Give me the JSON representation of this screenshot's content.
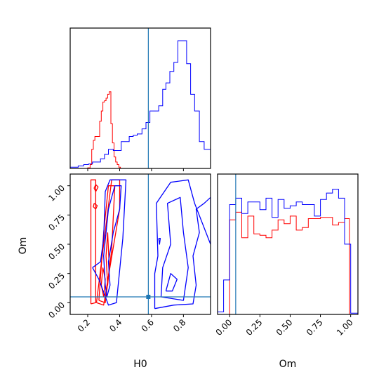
{
  "chart_data": {
    "type": "corner",
    "parameters": [
      "H0",
      "Om"
    ],
    "truths": {
      "H0": 0.58,
      "Om": 0.05
    },
    "colors": {
      "series_a": "#ff0000",
      "series_b": "#0000ff",
      "truth": "#1f77b4"
    },
    "grid": false,
    "legend": "none",
    "ticks": {
      "H0": [
        "0.2",
        "0.4",
        "0.6",
        "0.8"
      ],
      "Om": [
        "0.00",
        "0.25",
        "0.50",
        "0.75",
        "1.00"
      ]
    },
    "axis_labels": {
      "corner_x": "H0",
      "corner_y": "Om",
      "om_hist_x": "Om"
    },
    "ranges": {
      "H0": [
        0.09,
        0.97
      ],
      "Om": [
        -0.1,
        1.1
      ],
      "Om_hist": [
        -0.1,
        1.06
      ]
    },
    "h0_histogram": {
      "x_range": [
        0.09,
        0.97
      ],
      "series_a": {
        "edges": [
          0.09,
          0.2,
          0.215,
          0.225,
          0.235,
          0.245,
          0.255,
          0.265,
          0.275,
          0.285,
          0.295,
          0.305,
          0.315,
          0.325,
          0.335,
          0.345,
          0.355,
          0.365,
          0.375,
          0.385,
          0.395,
          0.405,
          0.97
        ],
        "counts": [
          0,
          0.005,
          0.03,
          0.15,
          0.22,
          0.25,
          0.25,
          0.25,
          0.37,
          0.45,
          0.52,
          0.53,
          0.55,
          0.58,
          0.6,
          0.35,
          0.2,
          0.09,
          0.05,
          0.03,
          0.01,
          0
        ]
      },
      "series_b": {
        "edges": [
          0.09,
          0.14,
          0.175,
          0.205,
          0.23,
          0.255,
          0.28,
          0.305,
          0.33,
          0.36,
          0.39,
          0.41,
          0.435,
          0.46,
          0.485,
          0.51,
          0.54,
          0.565,
          0.59,
          0.62,
          0.645,
          0.67,
          0.69,
          0.715,
          0.74,
          0.765,
          0.79,
          0.82,
          0.845,
          0.87,
          0.9,
          0.93,
          0.97
        ],
        "counts": [
          0.01,
          0.02,
          0.03,
          0.035,
          0.05,
          0.05,
          0.075,
          0.11,
          0.15,
          0.14,
          0.14,
          0.21,
          0.21,
          0.25,
          0.26,
          0.27,
          0.31,
          0.36,
          0.45,
          0.45,
          0.49,
          0.62,
          0.67,
          0.76,
          0.83,
          1.0,
          1.0,
          0.82,
          0.58,
          0.45,
          0.21,
          0.15
        ]
      }
    },
    "om_histogram": {
      "x_range": [
        -0.1,
        1.06
      ],
      "series_a": {
        "edges": [
          -0.1,
          0.0,
          0.05,
          0.1,
          0.15,
          0.2,
          0.25,
          0.3,
          0.35,
          0.4,
          0.45,
          0.5,
          0.55,
          0.6,
          0.65,
          0.7,
          0.75,
          0.8,
          0.85,
          0.9,
          0.95,
          0.99,
          1.06
        ],
        "counts": [
          0,
          0.74,
          0.8,
          0.6,
          0.77,
          0.63,
          0.62,
          0.6,
          0.66,
          0.74,
          0.71,
          0.77,
          0.66,
          0.68,
          0.75,
          0.75,
          0.76,
          0.76,
          0.7,
          0.72,
          0.75,
          0
        ]
      },
      "series_b": {
        "edges": [
          -0.1,
          -0.05,
          0.0,
          0.05,
          0.1,
          0.15,
          0.2,
          0.25,
          0.3,
          0.35,
          0.4,
          0.45,
          0.5,
          0.55,
          0.6,
          0.65,
          0.7,
          0.75,
          0.8,
          0.85,
          0.9,
          0.95,
          1.0,
          1.06
        ],
        "counts": [
          0.02,
          0.27,
          0.86,
          0.91,
          0.79,
          0.88,
          0.88,
          0.82,
          0.91,
          0.76,
          0.9,
          0.83,
          0.85,
          0.88,
          0.86,
          0.86,
          0.77,
          0.9,
          0.95,
          0.98,
          0.91,
          0.55,
          0.01
        ]
      }
    },
    "contours": {
      "series_a": [
        [
          [
            0.22,
            -0.01
          ],
          [
            0.25,
            0.0
          ],
          [
            0.25,
            0.4
          ],
          [
            0.25,
            0.8
          ],
          [
            0.25,
            1.05
          ],
          [
            0.22,
            1.05
          ],
          [
            0.22,
            0.6
          ],
          [
            0.22,
            0.15
          ],
          [
            0.22,
            -0.01
          ]
        ],
        [
          [
            0.255,
            0.0
          ],
          [
            0.3,
            -0.02
          ],
          [
            0.4,
            0.8
          ],
          [
            0.4,
            1.05
          ],
          [
            0.35,
            1.05
          ],
          [
            0.3,
            0.5
          ],
          [
            0.255,
            0.0
          ]
        ],
        [
          [
            0.27,
            0.02
          ],
          [
            0.31,
            0.0
          ],
          [
            0.35,
            0.45
          ],
          [
            0.37,
            1.0
          ],
          [
            0.33,
            1.0
          ],
          [
            0.3,
            0.6
          ],
          [
            0.27,
            0.02
          ]
        ],
        [
          [
            0.25,
            1.01
          ],
          [
            0.265,
            0.99
          ],
          [
            0.25,
            0.95
          ],
          [
            0.24,
            0.98
          ],
          [
            0.25,
            1.01
          ]
        ],
        [
          [
            0.24,
            0.85
          ],
          [
            0.26,
            0.83
          ],
          [
            0.25,
            0.8
          ],
          [
            0.235,
            0.82
          ],
          [
            0.24,
            0.85
          ]
        ],
        [
          [
            0.295,
            0.3
          ],
          [
            0.31,
            0.2
          ],
          [
            0.3,
            0.05
          ],
          [
            0.285,
            0.15
          ],
          [
            0.295,
            0.3
          ]
        ],
        [
          [
            0.325,
            0.6
          ],
          [
            0.335,
            0.3
          ],
          [
            0.325,
            0.15
          ],
          [
            0.315,
            0.4
          ],
          [
            0.325,
            0.6
          ]
        ]
      ],
      "series_b": [
        [
          [
            0.23,
            0.3
          ],
          [
            0.27,
            0.2
          ],
          [
            0.33,
            -0.02
          ],
          [
            0.38,
            0.0
          ],
          [
            0.42,
            0.55
          ],
          [
            0.44,
            1.05
          ],
          [
            0.34,
            1.05
          ],
          [
            0.31,
            0.95
          ],
          [
            0.3,
            0.55
          ],
          [
            0.28,
            0.35
          ],
          [
            0.23,
            0.3
          ]
        ],
        [
          [
            0.32,
            0.05
          ],
          [
            0.34,
            0.15
          ],
          [
            0.33,
            0.35
          ],
          [
            0.36,
            0.6
          ],
          [
            0.4,
            0.8
          ],
          [
            0.41,
            1.0
          ],
          [
            0.37,
            1.0
          ],
          [
            0.33,
            0.8
          ],
          [
            0.3,
            0.4
          ],
          [
            0.31,
            0.15
          ],
          [
            0.32,
            0.05
          ]
        ],
        [
          [
            0.62,
            -0.05
          ],
          [
            0.74,
            -0.02
          ],
          [
            0.86,
            -0.01
          ],
          [
            0.88,
            0.15
          ],
          [
            0.86,
            0.4
          ],
          [
            0.9,
            0.6
          ],
          [
            0.88,
            0.8
          ],
          [
            0.93,
            0.85
          ],
          [
            0.97,
            0.9
          ],
          [
            0.97,
            0.5
          ],
          [
            0.87,
            0.85
          ],
          [
            0.83,
            1.05
          ],
          [
            0.72,
            1.03
          ],
          [
            0.63,
            0.85
          ],
          [
            0.64,
            0.4
          ],
          [
            0.62,
            0.25
          ],
          [
            0.62,
            -0.05
          ]
        ],
        [
          [
            0.66,
            0.05
          ],
          [
            0.8,
            0.02
          ],
          [
            0.83,
            0.3
          ],
          [
            0.8,
            0.6
          ],
          [
            0.78,
            0.9
          ],
          [
            0.7,
            0.85
          ],
          [
            0.72,
            0.5
          ],
          [
            0.67,
            0.3
          ],
          [
            0.66,
            0.05
          ]
        ],
        [
          [
            0.69,
            0.1
          ],
          [
            0.73,
            0.1
          ],
          [
            0.76,
            0.2
          ],
          [
            0.72,
            0.25
          ],
          [
            0.69,
            0.1
          ]
        ],
        [
          [
            0.645,
            0.55
          ],
          [
            0.655,
            0.55
          ],
          [
            0.65,
            0.5
          ],
          [
            0.645,
            0.55
          ]
        ]
      ]
    }
  }
}
